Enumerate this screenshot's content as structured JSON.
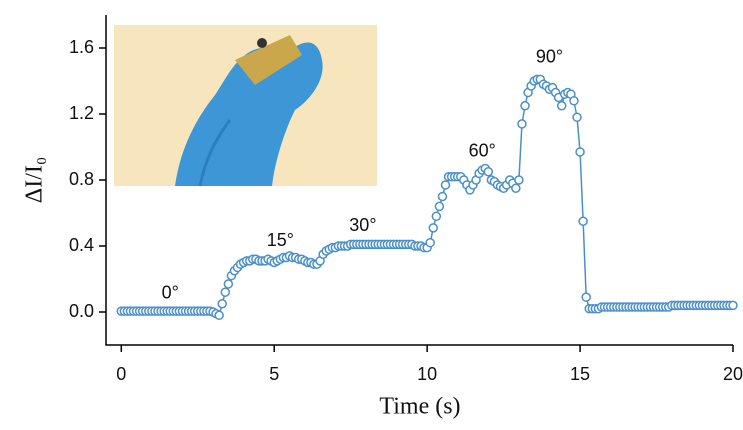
{
  "chart_data": {
    "type": "line",
    "xlabel": "Time (s)",
    "ylabel": "ΔI/I₀",
    "x": [
      0,
      0.1,
      0.2,
      0.3,
      0.4,
      0.5,
      0.6,
      0.7,
      0.8,
      0.9,
      1,
      1.1,
      1.2,
      1.3,
      1.4,
      1.5,
      1.6,
      1.7,
      1.8,
      1.9,
      2,
      2.1,
      2.2,
      2.3,
      2.4,
      2.5,
      2.6,
      2.7,
      2.8,
      2.9,
      3,
      3.1,
      3.2,
      3.3,
      3.4,
      3.5,
      3.6,
      3.7,
      3.8,
      3.9,
      4,
      4.1,
      4.2,
      4.3,
      4.4,
      4.5,
      4.6,
      4.7,
      4.8,
      4.9,
      5,
      5.1,
      5.2,
      5.3,
      5.4,
      5.5,
      5.6,
      5.7,
      5.8,
      5.9,
      6,
      6.1,
      6.2,
      6.3,
      6.4,
      6.5,
      6.6,
      6.7,
      6.8,
      6.9,
      7,
      7.1,
      7.2,
      7.3,
      7.4,
      7.5,
      7.6,
      7.7,
      7.8,
      7.9,
      8,
      8.1,
      8.2,
      8.3,
      8.4,
      8.5,
      8.6,
      8.7,
      8.8,
      8.9,
      9,
      9.1,
      9.2,
      9.3,
      9.4,
      9.5,
      9.6,
      9.7,
      9.8,
      9.9,
      10,
      10.1,
      10.2,
      10.3,
      10.4,
      10.5,
      10.6,
      10.7,
      10.8,
      10.9,
      11,
      11.1,
      11.2,
      11.3,
      11.4,
      11.5,
      11.6,
      11.7,
      11.8,
      11.9,
      12,
      12.1,
      12.2,
      12.3,
      12.4,
      12.5,
      12.6,
      12.7,
      12.8,
      12.9,
      13,
      13.1,
      13.2,
      13.3,
      13.4,
      13.5,
      13.6,
      13.7,
      13.8,
      13.9,
      14,
      14.1,
      14.2,
      14.3,
      14.4,
      14.5,
      14.6,
      14.7,
      14.8,
      14.9,
      15,
      15.1,
      15.2,
      15.3,
      15.4,
      15.5,
      15.6,
      15.7,
      15.8,
      15.9,
      16,
      16.1,
      16.2,
      16.3,
      16.4,
      16.5,
      16.6,
      16.7,
      16.8,
      16.9,
      17,
      17.1,
      17.2,
      17.3,
      17.4,
      17.5,
      17.6,
      17.7,
      17.8,
      17.9,
      18,
      18.1,
      18.2,
      18.3,
      18.4,
      18.5,
      18.6,
      18.7,
      18.8,
      18.9,
      19,
      19.1,
      19.2,
      19.3,
      19.4,
      19.5,
      19.6,
      19.7,
      19.8,
      19.9,
      20
    ],
    "series": [
      {
        "name": "ΔI/I₀",
        "color": "#4a8fc9",
        "values": [
          0.005,
          0.005,
          0.005,
          0.005,
          0.005,
          0.005,
          0.005,
          0.005,
          0.005,
          0.005,
          0.005,
          0.005,
          0.005,
          0.005,
          0.005,
          0.005,
          0.005,
          0.005,
          0.005,
          0.005,
          0.005,
          0.005,
          0.005,
          0.005,
          0.005,
          0.005,
          0.005,
          0.005,
          0.005,
          0.005,
          0.0,
          -0.01,
          -0.02,
          0.05,
          0.12,
          0.17,
          0.22,
          0.25,
          0.27,
          0.29,
          0.3,
          0.31,
          0.31,
          0.32,
          0.32,
          0.31,
          0.31,
          0.31,
          0.32,
          0.31,
          0.3,
          0.31,
          0.32,
          0.33,
          0.33,
          0.34,
          0.33,
          0.33,
          0.32,
          0.32,
          0.31,
          0.3,
          0.3,
          0.29,
          0.29,
          0.31,
          0.35,
          0.37,
          0.38,
          0.39,
          0.39,
          0.4,
          0.4,
          0.4,
          0.4,
          0.41,
          0.41,
          0.41,
          0.41,
          0.41,
          0.41,
          0.41,
          0.41,
          0.41,
          0.41,
          0.41,
          0.41,
          0.41,
          0.41,
          0.41,
          0.41,
          0.41,
          0.41,
          0.41,
          0.41,
          0.41,
          0.4,
          0.4,
          0.4,
          0.39,
          0.39,
          0.42,
          0.51,
          0.58,
          0.64,
          0.7,
          0.77,
          0.82,
          0.82,
          0.82,
          0.82,
          0.82,
          0.8,
          0.77,
          0.74,
          0.77,
          0.8,
          0.84,
          0.86,
          0.87,
          0.85,
          0.8,
          0.79,
          0.77,
          0.76,
          0.75,
          0.77,
          0.8,
          0.78,
          0.75,
          0.8,
          1.14,
          1.25,
          1.33,
          1.37,
          1.4,
          1.41,
          1.41,
          1.38,
          1.37,
          1.35,
          1.36,
          1.33,
          1.3,
          1.25,
          1.32,
          1.33,
          1.32,
          1.28,
          1.18,
          0.97,
          0.55,
          0.09,
          0.02,
          0.02,
          0.02,
          0.02,
          0.03,
          0.03,
          0.03,
          0.03,
          0.03,
          0.03,
          0.03,
          0.03,
          0.03,
          0.03,
          0.03,
          0.03,
          0.03,
          0.03,
          0.03,
          0.03,
          0.03,
          0.03,
          0.03,
          0.03,
          0.03,
          0.03,
          0.03,
          0.04,
          0.04,
          0.04,
          0.04,
          0.04,
          0.04,
          0.04,
          0.04,
          0.04,
          0.04,
          0.04,
          0.04,
          0.04,
          0.04,
          0.04,
          0.04,
          0.04,
          0.04,
          0.04,
          0.04,
          0.04
        ]
      }
    ],
    "annotations": [
      {
        "text": "0°",
        "x": 1.6,
        "y": 0.11
      },
      {
        "text": "15°",
        "x": 5.2,
        "y": 0.43
      },
      {
        "text": "30°",
        "x": 7.9,
        "y": 0.52
      },
      {
        "text": "60°",
        "x": 11.8,
        "y": 0.97
      },
      {
        "text": "90°",
        "x": 14.0,
        "y": 1.54
      }
    ],
    "xlim": [
      -0.5,
      20
    ],
    "ylim": [
      -0.2,
      1.8
    ],
    "xticks": [
      0,
      5,
      10,
      15,
      20
    ],
    "yticks": [
      {
        "value": 0,
        "label": "0.0"
      },
      0.4,
      0.8,
      1.2,
      1.6
    ]
  }
}
